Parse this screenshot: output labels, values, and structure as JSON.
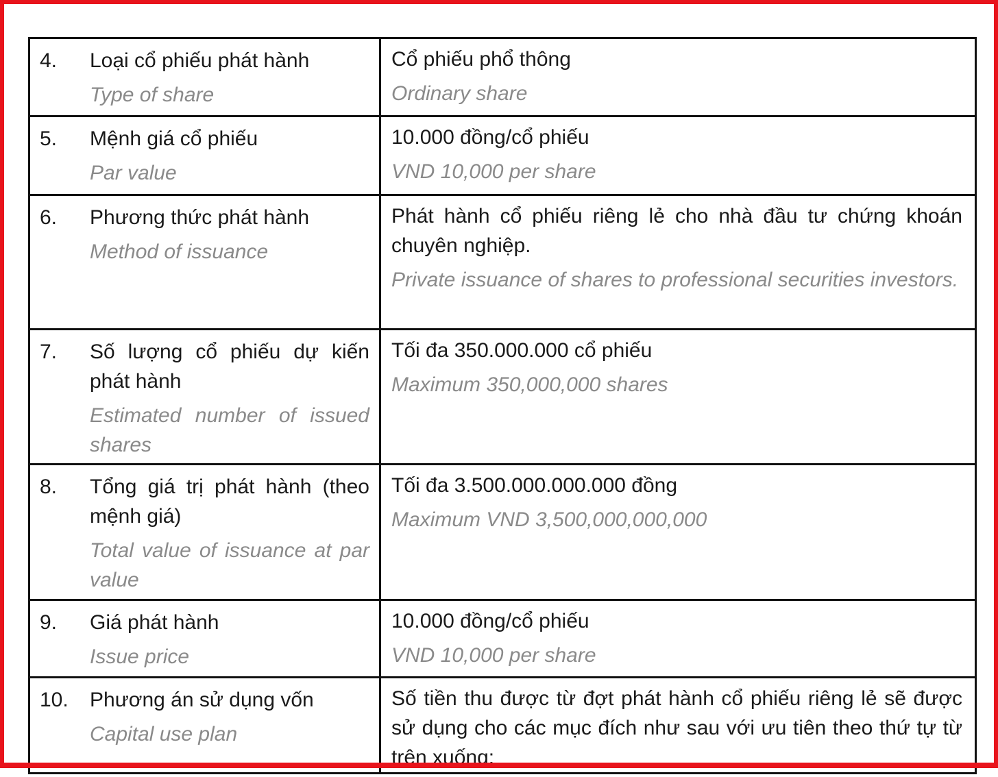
{
  "rows": [
    {
      "num": "4.",
      "label_vn": "Loại cổ phiếu phát hành",
      "label_en": "Type of share",
      "value_vn": "Cổ phiếu phổ thông",
      "value_en": "Ordinary share"
    },
    {
      "num": "5.",
      "label_vn": "Mệnh giá cổ phiếu",
      "label_en": "Par value",
      "value_vn": "10.000 đồng/cổ phiếu",
      "value_en": "VND 10,000 per share"
    },
    {
      "num": "6.",
      "label_vn": "Phương thức phát hành",
      "label_en": "Method of issuance",
      "value_vn": "Phát hành cổ phiếu riêng lẻ cho nhà đầu tư chứng khoán chuyên nghiệp.",
      "value_en": "Private issuance of shares to professional securities investors."
    },
    {
      "num": "7.",
      "label_vn": "Số lượng cổ phiếu dự kiến phát hành",
      "label_en": "Estimated number of issued shares",
      "value_vn": "Tối đa 350.000.000 cổ phiếu",
      "value_en": "Maximum 350,000,000 shares"
    },
    {
      "num": "8.",
      "label_vn": "Tổng giá trị phát hành (theo mệnh giá)",
      "label_en": "Total value of issuance at par value",
      "value_vn": "Tối đa 3.500.000.000.000 đồng",
      "value_en": "Maximum VND 3,500,000,000,000"
    },
    {
      "num": "9.",
      "label_vn": "Giá phát hành",
      "label_en": "Issue price",
      "value_vn": "10.000 đồng/cổ phiếu",
      "value_en": "VND 10,000 per share"
    },
    {
      "num": "10.",
      "label_vn": "Phương án sử dụng vốn",
      "label_en": "Capital use plan",
      "value_vn": "Số tiền thu được từ đợt phát hành cổ phiếu riêng lẻ sẽ được sử dụng cho các mục đích như sau với ưu tiên theo thứ tự từ trên xuống:",
      "value_en": ""
    }
  ],
  "colors": {
    "frame": "#e8141c",
    "english_text": "#8a8a8a"
  }
}
